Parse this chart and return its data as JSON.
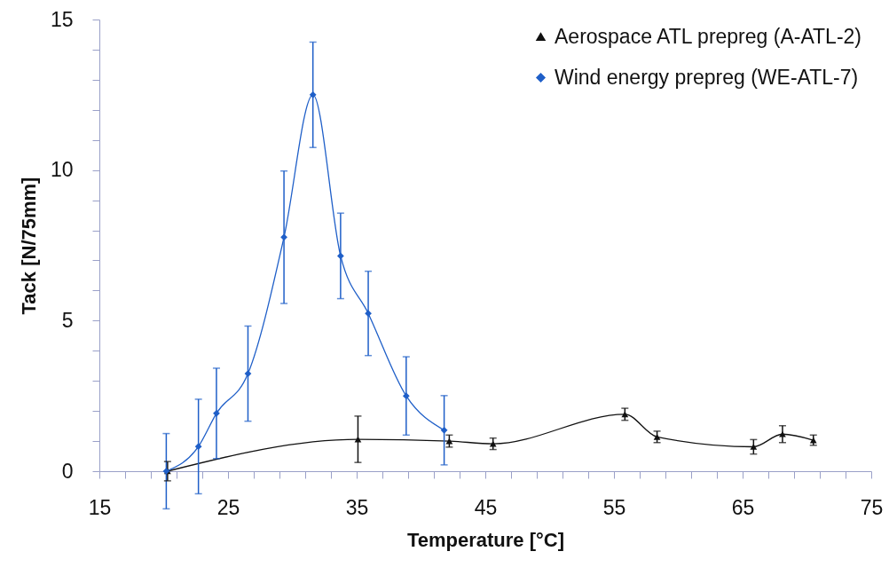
{
  "chart_data": {
    "type": "line",
    "xlabel": "Temperature [°C]",
    "ylabel": "Tack [N/75mm]",
    "xlim": [
      15,
      75
    ],
    "ylim": [
      0,
      15
    ],
    "xticks": [
      15,
      {
        "value": 17,
        "label": null
      },
      {
        "value": 19,
        "label": null
      },
      {
        "value": 21,
        "label": null
      },
      {
        "value": 23,
        "label": null
      },
      25,
      {
        "value": 27,
        "label": null
      },
      {
        "value": 29,
        "label": null
      },
      {
        "value": 31,
        "label": null
      },
      {
        "value": 33,
        "label": null
      },
      35,
      {
        "value": 37,
        "label": null
      },
      {
        "value": 39,
        "label": null
      },
      {
        "value": 41,
        "label": null
      },
      {
        "value": 43,
        "label": null
      },
      45,
      {
        "value": 47,
        "label": null
      },
      {
        "value": 49,
        "label": null
      },
      {
        "value": 51,
        "label": null
      },
      {
        "value": 53,
        "label": null
      },
      55,
      {
        "value": 57,
        "label": null
      },
      {
        "value": 59,
        "label": null
      },
      {
        "value": 61,
        "label": null
      },
      {
        "value": 63,
        "label": null
      },
      65,
      {
        "value": 67,
        "label": null
      },
      {
        "value": 69,
        "label": null
      },
      {
        "value": 71,
        "label": null
      },
      {
        "value": 73,
        "label": null
      },
      75
    ],
    "yticks": [
      0,
      {
        "value": 1,
        "label": null
      },
      {
        "value": 2,
        "label": null
      },
      {
        "value": 3,
        "label": null
      },
      {
        "value": 4,
        "label": null
      },
      5,
      {
        "value": 6,
        "label": null
      },
      {
        "value": 7,
        "label": null
      },
      {
        "value": 8,
        "label": null
      },
      {
        "value": 9,
        "label": null
      },
      10,
      {
        "value": 11,
        "label": null
      },
      {
        "value": 12,
        "label": null
      },
      {
        "value": 13,
        "label": null
      },
      {
        "value": 14,
        "label": null
      },
      15
    ],
    "grid": false,
    "legend": "top right",
    "series": [
      {
        "name": "Aerospace ATL prepreg (A-ATL-2)",
        "color": "#111111",
        "marker": "triangle",
        "x": [
          20.3,
          35.1,
          42.2,
          45.6,
          55.85,
          58.35,
          65.85,
          68.1,
          70.5
        ],
        "values": [
          0,
          1.06,
          1.0,
          0.91,
          1.89,
          1.14,
          0.81,
          1.23,
          1.03
        ],
        "errors": [
          0.32,
          0.77,
          0.2,
          0.19,
          0.2,
          0.19,
          0.24,
          0.28,
          0.17
        ]
      },
      {
        "name": "Wind energy prepreg (WE-ATL-7)",
        "color": "#1f5fc8",
        "marker": "diamond",
        "x": [
          20.2,
          22.7,
          24.1,
          26.55,
          29.35,
          31.6,
          33.75,
          35.9,
          38.85,
          41.8
        ],
        "values": [
          0,
          0.82,
          1.92,
          3.24,
          7.77,
          12.5,
          7.15,
          5.24,
          2.5,
          1.36
        ],
        "errors": [
          1.25,
          1.57,
          1.5,
          1.58,
          2.2,
          1.75,
          1.42,
          1.4,
          1.3,
          1.15
        ]
      }
    ]
  }
}
